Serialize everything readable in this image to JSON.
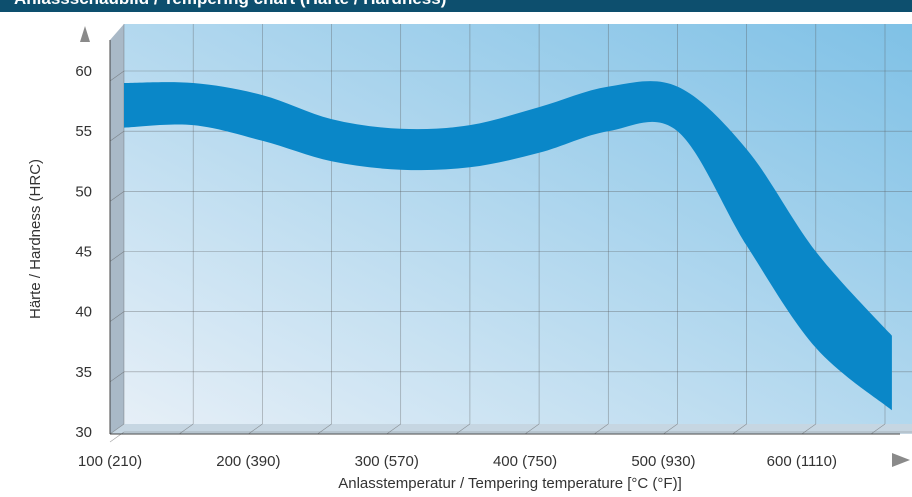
{
  "header": {
    "title": "Anlassschaubild / Tempering chart (Härte / Hardness)"
  },
  "chart_data": {
    "type": "area",
    "title": "",
    "xlabel": "Anlasstemperatur / Tempering temperature [°C (°F)]",
    "ylabel": "Härte / Hardness (HRC)",
    "x_ticks": [
      "100 (210)",
      "200 (390)",
      "300 (570)",
      "400 (750)",
      "500 (930)",
      "600 (1110)"
    ],
    "x_tick_values": [
      100,
      200,
      300,
      400,
      500,
      600
    ],
    "y_ticks": [
      "30",
      "35",
      "40",
      "45",
      "50",
      "55",
      "60"
    ],
    "y_tick_values": [
      30,
      35,
      40,
      45,
      50,
      55,
      60
    ],
    "xlim": [
      100,
      655
    ],
    "ylim": [
      30,
      62
    ],
    "grid": true,
    "series": [
      {
        "x": [
          100,
          150,
          200,
          250,
          300,
          350,
          400,
          450,
          500,
          550,
          600,
          655
        ],
        "upper": [
          59,
          59,
          58,
          56,
          55.2,
          55.5,
          57,
          58.7,
          58.7,
          53.5,
          45,
          38
        ],
        "lower": [
          55.3,
          55.5,
          54.2,
          52.5,
          51.8,
          52,
          53.2,
          55,
          55,
          45.5,
          37,
          31.8
        ],
        "color": "#0a87c8"
      }
    ],
    "colors": {
      "band": "#0a87c8",
      "plot_bg_left": "#e6eff7",
      "plot_bg_right": "#7fc1e6",
      "grid": "#555555"
    }
  }
}
